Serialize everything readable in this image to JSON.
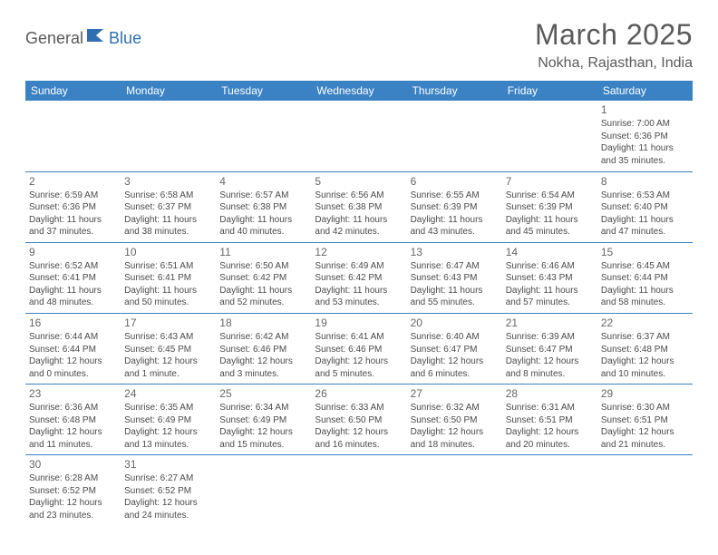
{
  "logo": {
    "part1": "General",
    "part2": "Blue"
  },
  "title": "March 2025",
  "location": "Nokha, Rajasthan, India",
  "colors": {
    "header_bg": "#3b82c4",
    "header_text": "#ffffff",
    "grid_line": "#3b82c4",
    "text": "#4a4a4a",
    "title_text": "#5a5a5a",
    "logo_gray": "#5a5a5a",
    "logo_blue": "#2f6fb0",
    "background": "#ffffff"
  },
  "day_headers": [
    "Sunday",
    "Monday",
    "Tuesday",
    "Wednesday",
    "Thursday",
    "Friday",
    "Saturday"
  ],
  "weeks": [
    [
      null,
      null,
      null,
      null,
      null,
      null,
      {
        "n": "1",
        "sr": "Sunrise: 7:00 AM",
        "ss": "Sunset: 6:36 PM",
        "d1": "Daylight: 11 hours",
        "d2": "and 35 minutes."
      }
    ],
    [
      {
        "n": "2",
        "sr": "Sunrise: 6:59 AM",
        "ss": "Sunset: 6:36 PM",
        "d1": "Daylight: 11 hours",
        "d2": "and 37 minutes."
      },
      {
        "n": "3",
        "sr": "Sunrise: 6:58 AM",
        "ss": "Sunset: 6:37 PM",
        "d1": "Daylight: 11 hours",
        "d2": "and 38 minutes."
      },
      {
        "n": "4",
        "sr": "Sunrise: 6:57 AM",
        "ss": "Sunset: 6:38 PM",
        "d1": "Daylight: 11 hours",
        "d2": "and 40 minutes."
      },
      {
        "n": "5",
        "sr": "Sunrise: 6:56 AM",
        "ss": "Sunset: 6:38 PM",
        "d1": "Daylight: 11 hours",
        "d2": "and 42 minutes."
      },
      {
        "n": "6",
        "sr": "Sunrise: 6:55 AM",
        "ss": "Sunset: 6:39 PM",
        "d1": "Daylight: 11 hours",
        "d2": "and 43 minutes."
      },
      {
        "n": "7",
        "sr": "Sunrise: 6:54 AM",
        "ss": "Sunset: 6:39 PM",
        "d1": "Daylight: 11 hours",
        "d2": "and 45 minutes."
      },
      {
        "n": "8",
        "sr": "Sunrise: 6:53 AM",
        "ss": "Sunset: 6:40 PM",
        "d1": "Daylight: 11 hours",
        "d2": "and 47 minutes."
      }
    ],
    [
      {
        "n": "9",
        "sr": "Sunrise: 6:52 AM",
        "ss": "Sunset: 6:41 PM",
        "d1": "Daylight: 11 hours",
        "d2": "and 48 minutes."
      },
      {
        "n": "10",
        "sr": "Sunrise: 6:51 AM",
        "ss": "Sunset: 6:41 PM",
        "d1": "Daylight: 11 hours",
        "d2": "and 50 minutes."
      },
      {
        "n": "11",
        "sr": "Sunrise: 6:50 AM",
        "ss": "Sunset: 6:42 PM",
        "d1": "Daylight: 11 hours",
        "d2": "and 52 minutes."
      },
      {
        "n": "12",
        "sr": "Sunrise: 6:49 AM",
        "ss": "Sunset: 6:42 PM",
        "d1": "Daylight: 11 hours",
        "d2": "and 53 minutes."
      },
      {
        "n": "13",
        "sr": "Sunrise: 6:47 AM",
        "ss": "Sunset: 6:43 PM",
        "d1": "Daylight: 11 hours",
        "d2": "and 55 minutes."
      },
      {
        "n": "14",
        "sr": "Sunrise: 6:46 AM",
        "ss": "Sunset: 6:43 PM",
        "d1": "Daylight: 11 hours",
        "d2": "and 57 minutes."
      },
      {
        "n": "15",
        "sr": "Sunrise: 6:45 AM",
        "ss": "Sunset: 6:44 PM",
        "d1": "Daylight: 11 hours",
        "d2": "and 58 minutes."
      }
    ],
    [
      {
        "n": "16",
        "sr": "Sunrise: 6:44 AM",
        "ss": "Sunset: 6:44 PM",
        "d1": "Daylight: 12 hours",
        "d2": "and 0 minutes."
      },
      {
        "n": "17",
        "sr": "Sunrise: 6:43 AM",
        "ss": "Sunset: 6:45 PM",
        "d1": "Daylight: 12 hours",
        "d2": "and 1 minute."
      },
      {
        "n": "18",
        "sr": "Sunrise: 6:42 AM",
        "ss": "Sunset: 6:46 PM",
        "d1": "Daylight: 12 hours",
        "d2": "and 3 minutes."
      },
      {
        "n": "19",
        "sr": "Sunrise: 6:41 AM",
        "ss": "Sunset: 6:46 PM",
        "d1": "Daylight: 12 hours",
        "d2": "and 5 minutes."
      },
      {
        "n": "20",
        "sr": "Sunrise: 6:40 AM",
        "ss": "Sunset: 6:47 PM",
        "d1": "Daylight: 12 hours",
        "d2": "and 6 minutes."
      },
      {
        "n": "21",
        "sr": "Sunrise: 6:39 AM",
        "ss": "Sunset: 6:47 PM",
        "d1": "Daylight: 12 hours",
        "d2": "and 8 minutes."
      },
      {
        "n": "22",
        "sr": "Sunrise: 6:37 AM",
        "ss": "Sunset: 6:48 PM",
        "d1": "Daylight: 12 hours",
        "d2": "and 10 minutes."
      }
    ],
    [
      {
        "n": "23",
        "sr": "Sunrise: 6:36 AM",
        "ss": "Sunset: 6:48 PM",
        "d1": "Daylight: 12 hours",
        "d2": "and 11 minutes."
      },
      {
        "n": "24",
        "sr": "Sunrise: 6:35 AM",
        "ss": "Sunset: 6:49 PM",
        "d1": "Daylight: 12 hours",
        "d2": "and 13 minutes."
      },
      {
        "n": "25",
        "sr": "Sunrise: 6:34 AM",
        "ss": "Sunset: 6:49 PM",
        "d1": "Daylight: 12 hours",
        "d2": "and 15 minutes."
      },
      {
        "n": "26",
        "sr": "Sunrise: 6:33 AM",
        "ss": "Sunset: 6:50 PM",
        "d1": "Daylight: 12 hours",
        "d2": "and 16 minutes."
      },
      {
        "n": "27",
        "sr": "Sunrise: 6:32 AM",
        "ss": "Sunset: 6:50 PM",
        "d1": "Daylight: 12 hours",
        "d2": "and 18 minutes."
      },
      {
        "n": "28",
        "sr": "Sunrise: 6:31 AM",
        "ss": "Sunset: 6:51 PM",
        "d1": "Daylight: 12 hours",
        "d2": "and 20 minutes."
      },
      {
        "n": "29",
        "sr": "Sunrise: 6:30 AM",
        "ss": "Sunset: 6:51 PM",
        "d1": "Daylight: 12 hours",
        "d2": "and 21 minutes."
      }
    ],
    [
      {
        "n": "30",
        "sr": "Sunrise: 6:28 AM",
        "ss": "Sunset: 6:52 PM",
        "d1": "Daylight: 12 hours",
        "d2": "and 23 minutes."
      },
      {
        "n": "31",
        "sr": "Sunrise: 6:27 AM",
        "ss": "Sunset: 6:52 PM",
        "d1": "Daylight: 12 hours",
        "d2": "and 24 minutes."
      },
      null,
      null,
      null,
      null,
      null
    ]
  ]
}
